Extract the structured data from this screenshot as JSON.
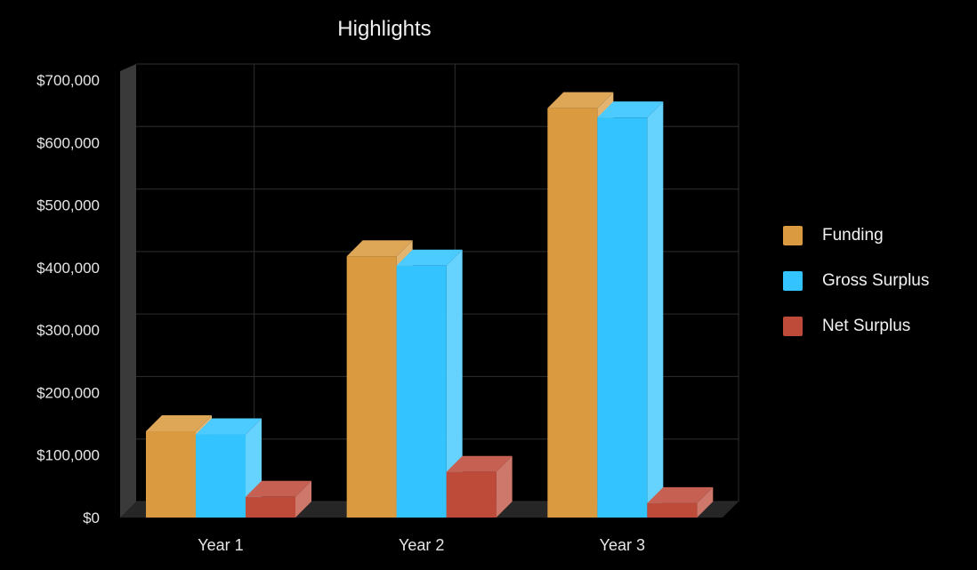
{
  "chart_data": {
    "type": "bar",
    "title": "Highlights",
    "categories": [
      "Year 1",
      "Year 2",
      "Year 3"
    ],
    "series": [
      {
        "name": "Funding",
        "color": "#D99A40",
        "values": [
          138000,
          418000,
          655000
        ]
      },
      {
        "name": "Gross Surplus",
        "color": "#33C4FF",
        "values": [
          133000,
          403000,
          640000
        ]
      },
      {
        "name": "Net Surplus",
        "color": "#BE4A3A",
        "values": [
          33000,
          73000,
          23000
        ]
      }
    ],
    "y_ticks": [
      "$0",
      "$100,000",
      "$200,000",
      "$300,000",
      "$400,000",
      "$500,000",
      "$600,000",
      "$700,000"
    ],
    "ylim": [
      0,
      700000
    ],
    "xlabel": "",
    "ylabel": "",
    "grid": true,
    "legend_position": "right",
    "style": "3d"
  }
}
